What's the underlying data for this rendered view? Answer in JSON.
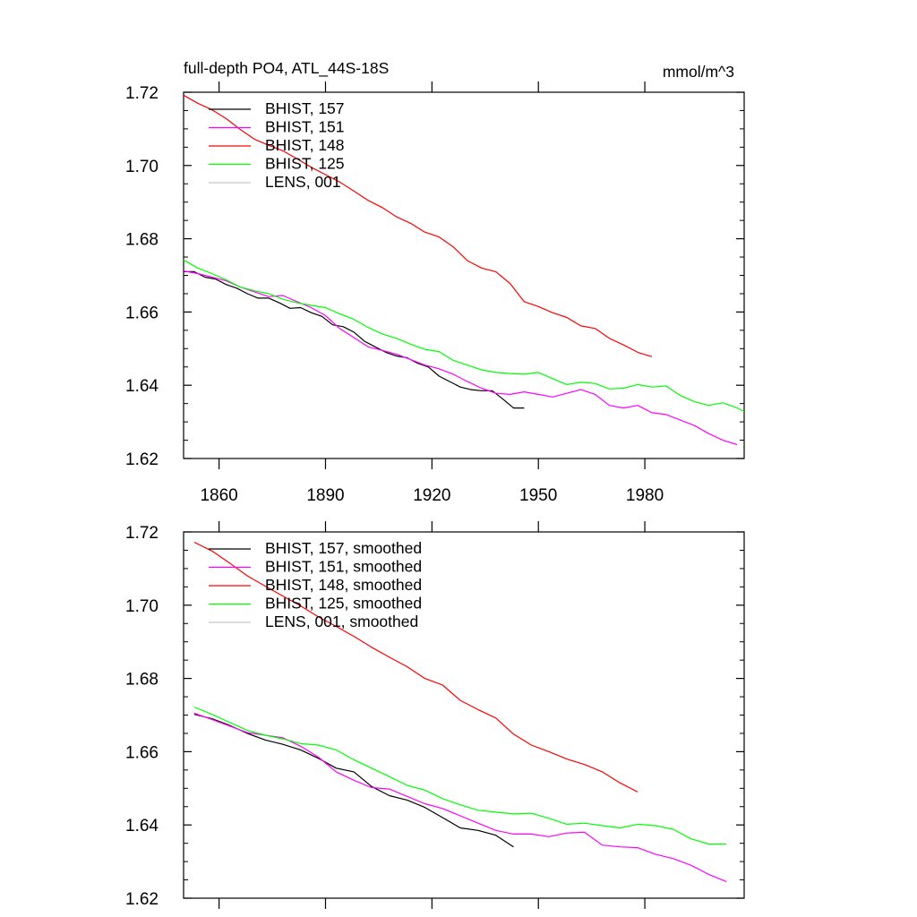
{
  "chart_data": [
    {
      "type": "line",
      "title": "full-depth PO4, ATL_44S-18S",
      "units": "mmol/m^3",
      "xlabel": "",
      "ylabel": "",
      "xlim": [
        1850,
        2008
      ],
      "ylim": [
        1.62,
        1.72
      ],
      "xticks": [
        1860,
        1890,
        1920,
        1950,
        1980
      ],
      "yticks": [
        1.62,
        1.64,
        1.66,
        1.68,
        1.7,
        1.72
      ],
      "ytick_labels": [
        "1.62",
        "1.64",
        "1.66",
        "1.68",
        "1.70",
        "1.72"
      ],
      "show_x_tick_labels": true,
      "grid": false,
      "legend_position": "top-left",
      "series": [
        {
          "name": "BHIST, 157",
          "color": "#000000",
          "x": [
            1850,
            1853,
            1856,
            1859,
            1862,
            1865,
            1868,
            1871,
            1874,
            1877,
            1880,
            1883,
            1886,
            1889,
            1892,
            1895,
            1898,
            1901,
            1904,
            1907,
            1910,
            1913,
            1916,
            1919,
            1922,
            1925,
            1928,
            1931,
            1934,
            1937,
            1940,
            1943,
            1946
          ],
          "y": [
            1.671,
            1.671,
            1.6695,
            1.669,
            1.6675,
            1.6665,
            1.665,
            1.6638,
            1.6638,
            1.6625,
            1.661,
            1.6612,
            1.6598,
            1.6588,
            1.6565,
            1.656,
            1.6545,
            1.652,
            1.6505,
            1.649,
            1.648,
            1.6475,
            1.646,
            1.645,
            1.6425,
            1.641,
            1.6395,
            1.6388,
            1.6385,
            1.6385,
            1.6362,
            1.6338,
            1.6338
          ]
        },
        {
          "name": "BHIST, 151",
          "color": "#ff00ff",
          "x": [
            1850,
            1854,
            1858,
            1862,
            1866,
            1870,
            1874,
            1878,
            1882,
            1886,
            1890,
            1894,
            1898,
            1902,
            1906,
            1910,
            1914,
            1918,
            1922,
            1926,
            1930,
            1934,
            1938,
            1942,
            1946,
            1950,
            1954,
            1958,
            1962,
            1966,
            1970,
            1974,
            1978,
            1982,
            1986,
            1990,
            1994,
            1998,
            2002,
            2006
          ],
          "y": [
            1.6712,
            1.6705,
            1.6695,
            1.6685,
            1.6668,
            1.6655,
            1.6642,
            1.6645,
            1.6628,
            1.6612,
            1.659,
            1.6555,
            1.653,
            1.6505,
            1.6495,
            1.6485,
            1.647,
            1.6455,
            1.6445,
            1.643,
            1.641,
            1.6392,
            1.6378,
            1.6375,
            1.6382,
            1.6375,
            1.6368,
            1.6378,
            1.6388,
            1.6375,
            1.6345,
            1.6338,
            1.6345,
            1.6325,
            1.632,
            1.6305,
            1.629,
            1.6268,
            1.625,
            1.6238
          ]
        },
        {
          "name": "BHIST, 148",
          "color": "#ff0000",
          "x": [
            1850,
            1854,
            1858,
            1862,
            1866,
            1870,
            1874,
            1878,
            1882,
            1886,
            1890,
            1894,
            1898,
            1902,
            1906,
            1910,
            1914,
            1918,
            1922,
            1926,
            1930,
            1934,
            1938,
            1942,
            1946,
            1950,
            1954,
            1958,
            1962,
            1966,
            1970,
            1974,
            1978,
            1982
          ],
          "y": [
            1.7192,
            1.717,
            1.7152,
            1.7128,
            1.7098,
            1.7072,
            1.7055,
            1.704,
            1.7018,
            1.6995,
            1.6975,
            1.6955,
            1.693,
            1.6905,
            1.6885,
            1.686,
            1.6842,
            1.6818,
            1.6805,
            1.6778,
            1.674,
            1.672,
            1.671,
            1.6678,
            1.6628,
            1.6615,
            1.6598,
            1.6585,
            1.6562,
            1.6555,
            1.6528,
            1.651,
            1.649,
            1.6478
          ]
        },
        {
          "name": "BHIST, 125",
          "color": "#00ff00",
          "x": [
            1850,
            1854,
            1858,
            1862,
            1866,
            1870,
            1874,
            1878,
            1882,
            1886,
            1890,
            1894,
            1898,
            1902,
            1906,
            1910,
            1914,
            1918,
            1922,
            1926,
            1930,
            1934,
            1938,
            1942,
            1946,
            1950,
            1954,
            1958,
            1962,
            1966,
            1970,
            1974,
            1978,
            1982,
            1986,
            1990,
            1994,
            1998,
            2002,
            2006,
            2008
          ],
          "y": [
            1.6742,
            1.672,
            1.6705,
            1.6688,
            1.6668,
            1.6658,
            1.665,
            1.6635,
            1.6625,
            1.6618,
            1.6612,
            1.6595,
            1.658,
            1.6558,
            1.654,
            1.6528,
            1.6512,
            1.6498,
            1.6492,
            1.6468,
            1.6455,
            1.6442,
            1.6435,
            1.6432,
            1.643,
            1.6435,
            1.6418,
            1.6402,
            1.6408,
            1.6405,
            1.639,
            1.6392,
            1.6402,
            1.6395,
            1.6398,
            1.6372,
            1.6355,
            1.6345,
            1.6352,
            1.6338,
            1.6328
          ]
        },
        {
          "name": "LENS, 001",
          "color": "#c8c8c8",
          "x": [],
          "y": []
        }
      ]
    },
    {
      "type": "line",
      "title": "",
      "units": "",
      "xlabel": "",
      "ylabel": "",
      "xlim": [
        1850,
        2008
      ],
      "ylim": [
        1.62,
        1.72
      ],
      "xticks": [
        1860,
        1890,
        1920,
        1950,
        1980
      ],
      "yticks": [
        1.62,
        1.64,
        1.66,
        1.68,
        1.7,
        1.72
      ],
      "ytick_labels": [
        "1.62",
        "1.64",
        "1.66",
        "1.68",
        "1.70",
        "1.72"
      ],
      "show_x_tick_labels": false,
      "grid": false,
      "legend_position": "top-left",
      "series": [
        {
          "name": "BHIST, 157, smoothed",
          "color": "#000000",
          "x": [
            1853,
            1858,
            1863,
            1868,
            1873,
            1878,
            1883,
            1888,
            1893,
            1898,
            1903,
            1908,
            1913,
            1918,
            1923,
            1928,
            1933,
            1938,
            1943
          ],
          "y": [
            1.6702,
            1.669,
            1.6672,
            1.665,
            1.6632,
            1.662,
            1.6605,
            1.6582,
            1.6555,
            1.6545,
            1.6505,
            1.648,
            1.6468,
            1.6448,
            1.642,
            1.6392,
            1.6385,
            1.6372,
            1.634
          ]
        },
        {
          "name": "BHIST, 151, smoothed",
          "color": "#ff00ff",
          "x": [
            1853,
            1858,
            1863,
            1868,
            1873,
            1878,
            1883,
            1888,
            1893,
            1898,
            1903,
            1908,
            1913,
            1918,
            1923,
            1928,
            1933,
            1938,
            1943,
            1948,
            1953,
            1958,
            1963,
            1968,
            1973,
            1978,
            1983,
            1988,
            1993,
            1998,
            2003
          ],
          "y": [
            1.6705,
            1.6688,
            1.667,
            1.6652,
            1.6645,
            1.6638,
            1.6615,
            1.6585,
            1.6545,
            1.6522,
            1.6502,
            1.6498,
            1.6478,
            1.6458,
            1.6445,
            1.6425,
            1.6405,
            1.6385,
            1.6375,
            1.6375,
            1.6368,
            1.6378,
            1.638,
            1.6345,
            1.634,
            1.6338,
            1.632,
            1.6308,
            1.629,
            1.6265,
            1.6245
          ]
        },
        {
          "name": "BHIST, 148, smoothed",
          "color": "#ff0000",
          "x": [
            1853,
            1858,
            1863,
            1868,
            1873,
            1878,
            1883,
            1888,
            1893,
            1898,
            1903,
            1908,
            1913,
            1918,
            1923,
            1928,
            1933,
            1938,
            1943,
            1948,
            1953,
            1958,
            1963,
            1968,
            1973,
            1978
          ],
          "y": [
            1.7172,
            1.7148,
            1.7115,
            1.708,
            1.7052,
            1.7025,
            1.6998,
            1.6968,
            1.6942,
            1.6915,
            1.6885,
            1.6858,
            1.6832,
            1.68,
            1.6782,
            1.674,
            1.6715,
            1.6692,
            1.6648,
            1.6618,
            1.66,
            1.658,
            1.6565,
            1.6545,
            1.6515,
            1.649
          ]
        },
        {
          "name": "BHIST, 125, smoothed",
          "color": "#00ff00",
          "x": [
            1853,
            1858,
            1863,
            1868,
            1873,
            1878,
            1883,
            1888,
            1893,
            1898,
            1903,
            1908,
            1913,
            1918,
            1923,
            1928,
            1933,
            1938,
            1943,
            1948,
            1953,
            1958,
            1963,
            1968,
            1973,
            1978,
            1983,
            1988,
            1993,
            1998,
            2003
          ],
          "y": [
            1.6722,
            1.6702,
            1.668,
            1.6658,
            1.6645,
            1.6635,
            1.6622,
            1.6618,
            1.6605,
            1.6578,
            1.6555,
            1.6532,
            1.6508,
            1.6495,
            1.6472,
            1.6455,
            1.644,
            1.6435,
            1.643,
            1.6432,
            1.6418,
            1.6402,
            1.6405,
            1.6398,
            1.6392,
            1.6402,
            1.6398,
            1.6388,
            1.6362,
            1.6348,
            1.6348
          ]
        },
        {
          "name": "LENS, 001, smoothed",
          "color": "#c8c8c8",
          "x": [],
          "y": []
        }
      ]
    }
  ]
}
